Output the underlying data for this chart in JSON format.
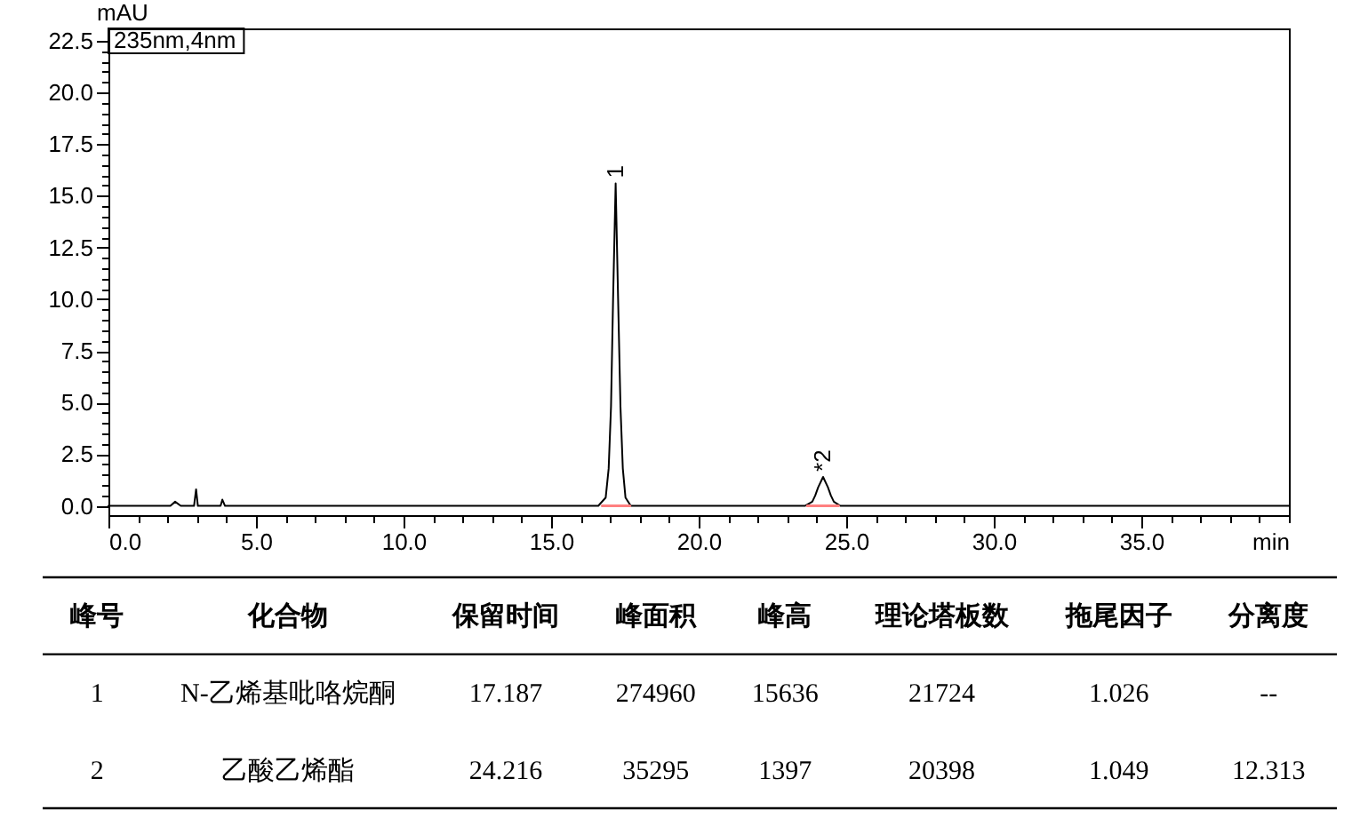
{
  "chart_data": [
    {
      "type": "line",
      "xlabel": "min",
      "ylabel": "mAU",
      "xlim": [
        0,
        40
      ],
      "ylim": [
        -0.45,
        23.1
      ],
      "grid": false,
      "xticks": [
        {
          "value": 0,
          "label": "0.0"
        },
        {
          "value": 1,
          "label": null
        },
        {
          "value": 2,
          "label": null
        },
        {
          "value": 3,
          "label": null
        },
        {
          "value": 4,
          "label": null
        },
        {
          "value": 5,
          "label": "5.0"
        },
        {
          "value": 6,
          "label": null
        },
        {
          "value": 7,
          "label": null
        },
        {
          "value": 8,
          "label": null
        },
        {
          "value": 9,
          "label": null
        },
        {
          "value": 10,
          "label": "10.0"
        },
        {
          "value": 11,
          "label": null
        },
        {
          "value": 12,
          "label": null
        },
        {
          "value": 13,
          "label": null
        },
        {
          "value": 14,
          "label": null
        },
        {
          "value": 15,
          "label": "15.0"
        },
        {
          "value": 16,
          "label": null
        },
        {
          "value": 17,
          "label": null
        },
        {
          "value": 18,
          "label": null
        },
        {
          "value": 19,
          "label": null
        },
        {
          "value": 20,
          "label": "20.0"
        },
        {
          "value": 21,
          "label": null
        },
        {
          "value": 22,
          "label": null
        },
        {
          "value": 23,
          "label": null
        },
        {
          "value": 24,
          "label": null
        },
        {
          "value": 25,
          "label": "25.0"
        },
        {
          "value": 26,
          "label": null
        },
        {
          "value": 27,
          "label": null
        },
        {
          "value": 28,
          "label": null
        },
        {
          "value": 29,
          "label": null
        },
        {
          "value": 30,
          "label": "30.0"
        },
        {
          "value": 31,
          "label": null
        },
        {
          "value": 32,
          "label": null
        },
        {
          "value": 33,
          "label": null
        },
        {
          "value": 34,
          "label": null
        },
        {
          "value": 35,
          "label": "35.0"
        },
        {
          "value": 36,
          "label": null
        },
        {
          "value": 37,
          "label": null
        },
        {
          "value": 38,
          "label": null
        },
        {
          "value": 39,
          "label": null
        },
        {
          "value": 40,
          "label": null
        }
      ],
      "yticks": [
        {
          "value": 0,
          "label": "0.0"
        },
        {
          "value": 0.5,
          "label": null
        },
        {
          "value": 1,
          "label": null
        },
        {
          "value": 1.5,
          "label": null
        },
        {
          "value": 2,
          "label": null
        },
        2.5,
        {
          "value": 3,
          "label": null
        },
        {
          "value": 3.5,
          "label": null
        },
        {
          "value": 4,
          "label": null
        },
        {
          "value": 4.5,
          "label": null
        },
        {
          "value": 5,
          "label": "5.0"
        },
        {
          "value": 5.5,
          "label": null
        },
        {
          "value": 6,
          "label": null
        },
        {
          "value": 6.5,
          "label": null
        },
        {
          "value": 7,
          "label": null
        },
        7.5,
        {
          "value": 8,
          "label": null
        },
        {
          "value": 8.5,
          "label": null
        },
        {
          "value": 9,
          "label": null
        },
        {
          "value": 9.5,
          "label": null
        },
        {
          "value": 10,
          "label": "10.0"
        },
        {
          "value": 10.5,
          "label": null
        },
        {
          "value": 11,
          "label": null
        },
        {
          "value": 11.5,
          "label": null
        },
        {
          "value": 12,
          "label": null
        },
        12.5,
        {
          "value": 13,
          "label": null
        },
        {
          "value": 13.5,
          "label": null
        },
        {
          "value": 14,
          "label": null
        },
        {
          "value": 14.5,
          "label": null
        },
        {
          "value": 15,
          "label": "15.0"
        },
        {
          "value": 15.5,
          "label": null
        },
        {
          "value": 16,
          "label": null
        },
        {
          "value": 16.5,
          "label": null
        },
        {
          "value": 17,
          "label": null
        },
        17.5,
        {
          "value": 18,
          "label": null
        },
        {
          "value": 18.5,
          "label": null
        },
        {
          "value": 19,
          "label": null
        },
        {
          "value": 19.5,
          "label": null
        },
        {
          "value": 20,
          "label": "20.0"
        },
        {
          "value": 20.5,
          "label": null
        },
        {
          "value": 21,
          "label": null
        },
        {
          "value": 21.5,
          "label": null
        },
        {
          "value": 22,
          "label": null
        },
        22.5
      ],
      "annotations": [
        "235nm,4nm",
        {
          "text": "1",
          "x": 17.187,
          "y": 15.6
        },
        {
          "text": "*2",
          "x": 24.216,
          "y": 1.4
        }
      ],
      "series": [
        {
          "color": "#000000",
          "x": [
            0,
            2.1,
            2.26,
            2.45,
            2.9,
            2.97,
            3.03,
            3.8,
            3.86,
            3.95,
            16.6,
            16.85,
            16.95,
            17.03,
            17.1,
            17.187,
            17.27,
            17.35,
            17.43,
            17.52,
            17.7,
            23.6,
            23.85,
            23.95,
            24.05,
            24.216,
            24.38,
            24.48,
            24.58,
            24.8,
            40
          ],
          "values": [
            0,
            0,
            0.2,
            0,
            0,
            0.8,
            0,
            0,
            0.3,
            0,
            0,
            0.4,
            1.8,
            4.8,
            10,
            15.6,
            10,
            4.8,
            1.8,
            0.4,
            0,
            0,
            0.2,
            0.5,
            0.9,
            1.4,
            0.9,
            0.5,
            0.2,
            0,
            0
          ]
        },
        {
          "color": "#ff7f7f",
          "x": [
            16.73,
            17.67
          ],
          "values": [
            0,
            0
          ]
        },
        {
          "color": "#ff7f7f",
          "x": [
            23.68,
            24.74
          ],
          "values": [
            0,
            0
          ]
        }
      ]
    },
    {
      "type": "other",
      "categories": [
        "峰号",
        "化合物",
        "保留时间",
        "峰面积",
        "峰高",
        "理论塔板数",
        "拖尾因子",
        "分离度"
      ],
      "annotations": [
        "1",
        "N-乙烯基吡咯烷酮",
        "17.187",
        "274960",
        "15636",
        "21724",
        "1.026",
        "--",
        "2",
        "乙酸乙烯酯",
        "24.216",
        "35295",
        "1397",
        "20398",
        "1.049",
        "12.313"
      ]
    }
  ]
}
